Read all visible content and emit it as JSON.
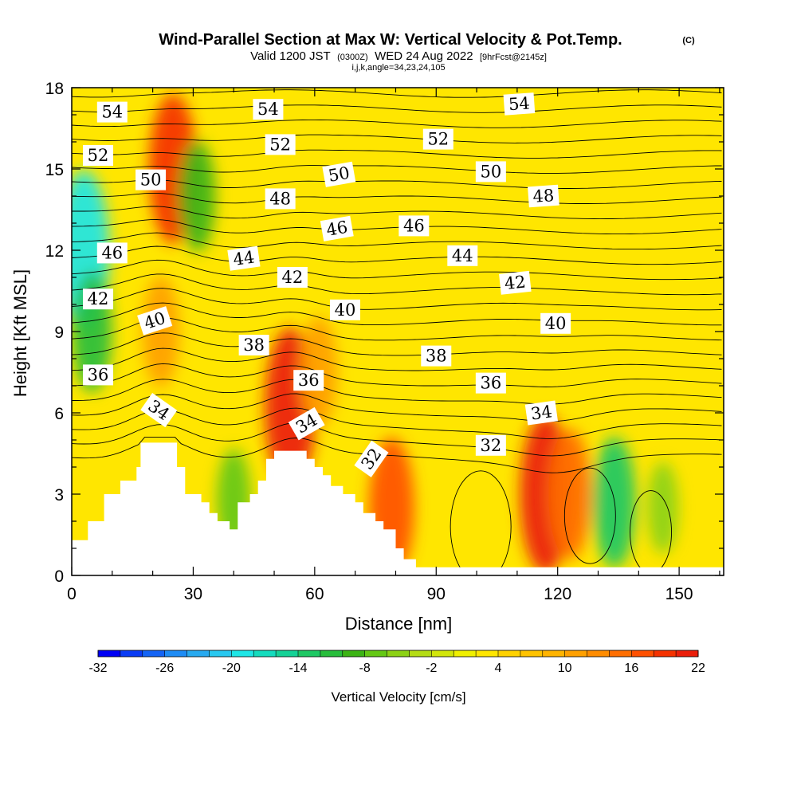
{
  "chart_data": {
    "type": "heatmap",
    "title": "Wind-Parallel Section at Max W: Vertical Velocity & Pot.Temp.",
    "title_mark": "(C)",
    "subtitle_main": "Valid 1200 JST",
    "subtitle_z": "(0300Z)",
    "subtitle_date": "WED 24 Aug 2022",
    "subtitle_fcst": "[9hrFcst@2145z]",
    "subsubtitle": "i,j,k,angle=34,23,24,105",
    "xlabel": "Distance [nm]",
    "ylabel": "Height [Kft MSL]",
    "xlim": [
      0,
      161
    ],
    "ylim": [
      0,
      18
    ],
    "x_ticks": [
      "0",
      "30",
      "60",
      "90",
      "120",
      "150"
    ],
    "x_tick_values": [
      0,
      30,
      60,
      90,
      120,
      150
    ],
    "y_ticks": [
      "0",
      "3",
      "6",
      "9",
      "12",
      "15",
      "18"
    ],
    "y_tick_values": [
      0,
      3,
      6,
      9,
      12,
      15,
      18
    ],
    "colorbar": {
      "title": "Vertical Velocity [cm/s]",
      "labels": [
        "-32",
        "-26",
        "-20",
        "-14",
        "-8",
        "-2",
        "4",
        "10",
        "16",
        "22"
      ],
      "min": -32,
      "max": 22,
      "step": 2,
      "colors": [
        "#0000f5",
        "#0a3cf5",
        "#1464f5",
        "#1e8cf5",
        "#28aaf0",
        "#28c8f0",
        "#1ee6e6",
        "#14dcbe",
        "#14d296",
        "#1ec864",
        "#28be3c",
        "#3cb414",
        "#64c814",
        "#8cd214",
        "#b4dc14",
        "#d2e60a",
        "#f0f000",
        "#ffe600",
        "#ffd200",
        "#ffc300",
        "#ffb400",
        "#ffa000",
        "#ff8c00",
        "#ff6e00",
        "#ff5000",
        "#f53200",
        "#eb1e0a",
        "#dc0a1e",
        "#c30032",
        "#aa0046",
        "#8c005a",
        "#780078",
        "#5a0082"
      ]
    },
    "background_value": 2,
    "features": [
      {
        "x": 3,
        "y": 12,
        "value": -20
      },
      {
        "x": 5,
        "y": 9,
        "value": -12
      },
      {
        "x": 25,
        "y": 15,
        "value": 18
      },
      {
        "x": 22,
        "y": 9,
        "value": 10
      },
      {
        "x": 31,
        "y": 14,
        "value": -10
      },
      {
        "x": 54,
        "y": 6.2,
        "value": 20
      },
      {
        "x": 61,
        "y": 7.5,
        "value": 10
      },
      {
        "x": 79,
        "y": 2.5,
        "value": 16
      },
      {
        "x": 117,
        "y": 3,
        "value": 20
      },
      {
        "x": 123,
        "y": 3,
        "value": 14
      },
      {
        "x": 134,
        "y": 2.7,
        "value": -14
      },
      {
        "x": 146,
        "y": 2.5,
        "value": -6
      },
      {
        "x": 40,
        "y": 2.8,
        "value": -8
      }
    ],
    "terrain": [
      [
        0,
        1.3
      ],
      [
        4,
        1.3
      ],
      [
        4,
        2.0
      ],
      [
        8,
        2.0
      ],
      [
        8,
        3.0
      ],
      [
        12,
        3.0
      ],
      [
        12,
        3.5
      ],
      [
        16,
        3.5
      ],
      [
        16,
        4.0
      ],
      [
        17,
        4.0
      ],
      [
        17,
        4.9
      ],
      [
        26,
        4.9
      ],
      [
        26,
        4.0
      ],
      [
        28,
        4.0
      ],
      [
        28,
        3.0
      ],
      [
        32,
        3.0
      ],
      [
        32,
        2.7
      ],
      [
        34,
        2.7
      ],
      [
        34,
        2.3
      ],
      [
        36,
        2.3
      ],
      [
        36,
        2.0
      ],
      [
        39,
        2.0
      ],
      [
        39,
        1.7
      ],
      [
        41,
        1.7
      ],
      [
        41,
        2.7
      ],
      [
        44,
        2.7
      ],
      [
        44,
        3.0
      ],
      [
        46,
        3.0
      ],
      [
        46,
        3.5
      ],
      [
        48,
        3.5
      ],
      [
        48,
        4.3
      ],
      [
        50,
        4.3
      ],
      [
        50,
        4.6
      ],
      [
        58,
        4.6
      ],
      [
        58,
        4.3
      ],
      [
        60,
        4.3
      ],
      [
        60,
        4.0
      ],
      [
        62,
        4.0
      ],
      [
        62,
        3.7
      ],
      [
        64,
        3.7
      ],
      [
        64,
        3.3
      ],
      [
        67,
        3.3
      ],
      [
        67,
        3.0
      ],
      [
        70,
        3.0
      ],
      [
        70,
        2.7
      ],
      [
        72,
        2.7
      ],
      [
        72,
        2.3
      ],
      [
        75,
        2.3
      ],
      [
        75,
        2.0
      ],
      [
        77,
        2.0
      ],
      [
        77,
        1.7
      ],
      [
        80,
        1.7
      ],
      [
        80,
        1.0
      ],
      [
        82,
        1.0
      ],
      [
        82,
        0.6
      ],
      [
        85,
        0.6
      ],
      [
        85,
        0.3
      ],
      [
        161,
        0.3
      ],
      [
        161,
        0
      ],
      [
        0,
        0
      ]
    ],
    "theta_levels": [
      31,
      32,
      33,
      34,
      35,
      36,
      37,
      38,
      39,
      40,
      41,
      42,
      43,
      44,
      45,
      46,
      47,
      48,
      49,
      50,
      51,
      52,
      53,
      54,
      55
    ],
    "theta_labels": [
      {
        "text": "54",
        "x": 10,
        "y": 17.1,
        "angle": 0
      },
      {
        "text": "52",
        "x": 6.5,
        "y": 15.5,
        "angle": 0
      },
      {
        "text": "50",
        "x": 19.5,
        "y": 14.6,
        "angle": 0
      },
      {
        "text": "46",
        "x": 10,
        "y": 11.9,
        "angle": 0
      },
      {
        "text": "42",
        "x": 6.5,
        "y": 10.2,
        "angle": 0
      },
      {
        "text": "40",
        "x": 20.5,
        "y": 9.4,
        "angle": -18
      },
      {
        "text": "36",
        "x": 6.5,
        "y": 7.4,
        "angle": 0
      },
      {
        "text": "34",
        "x": 21.5,
        "y": 6.1,
        "angle": 35
      },
      {
        "text": "54",
        "x": 48.5,
        "y": 17.2,
        "angle": 0
      },
      {
        "text": "52",
        "x": 51.5,
        "y": 15.9,
        "angle": 0
      },
      {
        "text": "50",
        "x": 66,
        "y": 14.8,
        "angle": -10
      },
      {
        "text": "48",
        "x": 51.5,
        "y": 13.9,
        "angle": 0
      },
      {
        "text": "46",
        "x": 65.5,
        "y": 12.8,
        "angle": -10
      },
      {
        "text": "46",
        "x": 84.5,
        "y": 12.9,
        "angle": 0
      },
      {
        "text": "44",
        "x": 42.5,
        "y": 11.7,
        "angle": -8
      },
      {
        "text": "44",
        "x": 96.5,
        "y": 11.8,
        "angle": 0
      },
      {
        "text": "42",
        "x": 54.5,
        "y": 11.0,
        "angle": 0
      },
      {
        "text": "42",
        "x": 109.5,
        "y": 10.8,
        "angle": -6
      },
      {
        "text": "40",
        "x": 67.5,
        "y": 9.8,
        "angle": 0
      },
      {
        "text": "40",
        "x": 119.5,
        "y": 9.3,
        "angle": 0
      },
      {
        "text": "38",
        "x": 45,
        "y": 8.5,
        "angle": 0
      },
      {
        "text": "38",
        "x": 90,
        "y": 8.1,
        "angle": 0
      },
      {
        "text": "36",
        "x": 58.5,
        "y": 7.2,
        "angle": 0
      },
      {
        "text": "36",
        "x": 103.5,
        "y": 7.1,
        "angle": 0
      },
      {
        "text": "34",
        "x": 58,
        "y": 5.6,
        "angle": -30
      },
      {
        "text": "34",
        "x": 116,
        "y": 6.0,
        "angle": -8
      },
      {
        "text": "32",
        "x": 103.5,
        "y": 4.8,
        "angle": 0
      },
      {
        "text": "32",
        "x": 74,
        "y": 4.3,
        "angle": -55
      },
      {
        "text": "54",
        "x": 110.5,
        "y": 17.4,
        "angle": -4
      },
      {
        "text": "52",
        "x": 90.5,
        "y": 16.1,
        "angle": 0
      },
      {
        "text": "50",
        "x": 103.5,
        "y": 14.9,
        "angle": 0
      },
      {
        "text": "48",
        "x": 116.5,
        "y": 14.0,
        "angle": -4
      }
    ]
  }
}
